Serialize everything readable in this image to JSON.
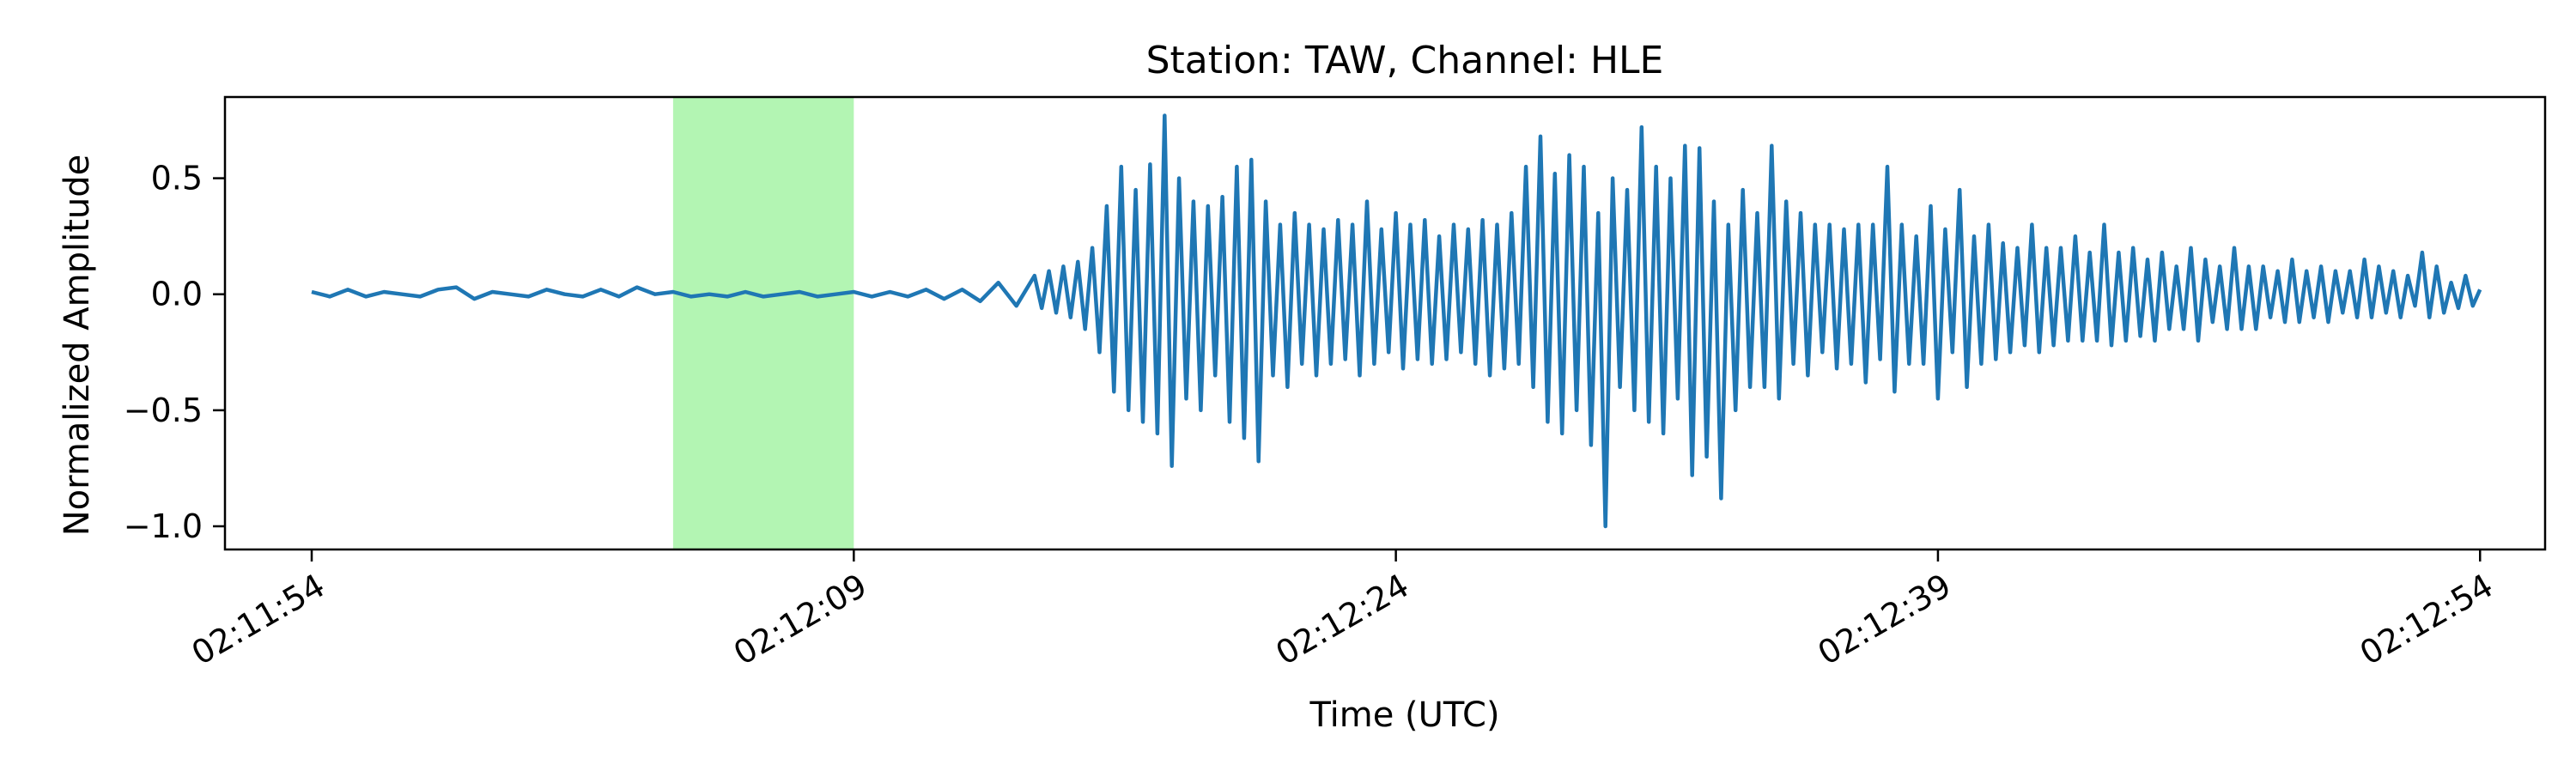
{
  "chart_data": {
    "type": "line",
    "title": "Station: TAW, Channel: HLE",
    "xlabel": "Time (UTC)",
    "ylabel": "Normalized Amplitude",
    "x_unit": "seconds",
    "xlim": [
      -2.4,
      61.8
    ],
    "ylim": [
      -1.1,
      0.85
    ],
    "x_ticks": [
      0,
      15,
      30,
      45,
      60
    ],
    "x_tick_labels": [
      "02:11:54",
      "02:12:09",
      "02:12:24",
      "02:12:39",
      "02:12:54"
    ],
    "y_ticks": [
      -1.0,
      -0.5,
      0.0,
      0.5
    ],
    "y_tick_labels": [
      "−1.0",
      "−0.5",
      "0.0",
      "0.5"
    ],
    "grid": false,
    "highlight": {
      "x_start": 10.0,
      "x_end": 15.0,
      "color": "#b3f5b3"
    },
    "series": [
      {
        "color": "#1f77b4",
        "x": [
          0,
          0.5,
          1,
          1.5,
          2,
          2.5,
          3,
          3.5,
          4,
          4.5,
          5,
          5.5,
          6,
          6.5,
          7,
          7.5,
          8,
          8.5,
          9,
          9.5,
          10,
          10.5,
          11,
          11.5,
          12,
          12.5,
          13,
          13.5,
          14,
          14.5,
          15,
          15.5,
          16,
          16.5,
          17,
          17.5,
          18,
          18.5,
          19,
          19.5,
          20,
          20.2,
          20.4,
          20.6,
          20.8,
          21,
          21.2,
          21.4,
          21.6,
          21.8,
          22,
          22.2,
          22.4,
          22.6,
          22.8,
          23,
          23.2,
          23.4,
          23.6,
          23.8,
          24,
          24.2,
          24.4,
          24.6,
          24.8,
          25,
          25.2,
          25.4,
          25.6,
          25.8,
          26,
          26.2,
          26.4,
          26.6,
          26.8,
          27,
          27.2,
          27.4,
          27.6,
          27.8,
          28,
          28.2,
          28.4,
          28.6,
          28.8,
          29,
          29.2,
          29.4,
          29.6,
          29.8,
          30,
          30.2,
          30.4,
          30.6,
          30.8,
          31,
          31.2,
          31.4,
          31.6,
          31.8,
          32,
          32.2,
          32.4,
          32.6,
          32.8,
          33,
          33.2,
          33.4,
          33.6,
          33.8,
          34,
          34.2,
          34.4,
          34.6,
          34.8,
          35,
          35.2,
          35.4,
          35.6,
          35.8,
          36,
          36.2,
          36.4,
          36.6,
          36.8,
          37,
          37.2,
          37.4,
          37.6,
          37.8,
          38,
          38.2,
          38.4,
          38.6,
          38.8,
          39,
          39.2,
          39.4,
          39.6,
          39.8,
          40,
          40.2,
          40.4,
          40.6,
          40.8,
          41,
          41.2,
          41.4,
          41.6,
          41.8,
          42,
          42.2,
          42.4,
          42.6,
          42.8,
          43,
          43.2,
          43.4,
          43.6,
          43.8,
          44,
          44.2,
          44.4,
          44.6,
          44.8,
          45,
          45.2,
          45.4,
          45.6,
          45.8,
          46,
          46.2,
          46.4,
          46.6,
          46.8,
          47,
          47.2,
          47.4,
          47.6,
          47.8,
          48,
          48.2,
          48.4,
          48.6,
          48.8,
          49,
          49.2,
          49.4,
          49.6,
          49.8,
          50,
          50.2,
          50.4,
          50.6,
          50.8,
          51,
          51.2,
          51.4,
          51.6,
          51.8,
          52,
          52.2,
          52.4,
          52.6,
          52.8,
          53,
          53.2,
          53.4,
          53.6,
          53.8,
          54,
          54.2,
          54.4,
          54.6,
          54.8,
          55,
          55.2,
          55.4,
          55.6,
          55.8,
          56,
          56.2,
          56.4,
          56.6,
          56.8,
          57,
          57.2,
          57.4,
          57.6,
          57.8,
          58,
          58.2,
          58.4,
          58.6,
          58.8,
          59,
          59.2,
          59.4,
          59.6,
          59.8,
          60
        ],
        "y": [
          0.01,
          -0.01,
          0.02,
          -0.01,
          0.01,
          0.0,
          -0.01,
          0.02,
          0.03,
          -0.02,
          0.01,
          0.0,
          -0.01,
          0.02,
          0.0,
          -0.01,
          0.02,
          -0.01,
          0.03,
          0.0,
          0.01,
          -0.01,
          0.0,
          -0.01,
          0.01,
          -0.01,
          0.0,
          0.01,
          -0.01,
          0.0,
          0.01,
          -0.01,
          0.01,
          -0.01,
          0.02,
          -0.02,
          0.02,
          -0.03,
          0.05,
          -0.05,
          0.08,
          -0.06,
          0.1,
          -0.08,
          0.12,
          -0.1,
          0.14,
          -0.15,
          0.2,
          -0.25,
          0.38,
          -0.42,
          0.55,
          -0.5,
          0.45,
          -0.55,
          0.56,
          -0.6,
          0.77,
          -0.74,
          0.5,
          -0.45,
          0.4,
          -0.5,
          0.38,
          -0.35,
          0.42,
          -0.55,
          0.55,
          -0.62,
          0.58,
          -0.72,
          0.4,
          -0.35,
          0.3,
          -0.4,
          0.35,
          -0.3,
          0.3,
          -0.35,
          0.28,
          -0.3,
          0.32,
          -0.28,
          0.3,
          -0.35,
          0.4,
          -0.3,
          0.28,
          -0.25,
          0.35,
          -0.32,
          0.3,
          -0.28,
          0.32,
          -0.3,
          0.25,
          -0.28,
          0.3,
          -0.25,
          0.28,
          -0.3,
          0.32,
          -0.35,
          0.3,
          -0.32,
          0.35,
          -0.3,
          0.55,
          -0.4,
          0.68,
          -0.55,
          0.52,
          -0.6,
          0.6,
          -0.5,
          0.55,
          -0.65,
          0.35,
          -1.0,
          0.5,
          -0.4,
          0.45,
          -0.5,
          0.72,
          -0.55,
          0.55,
          -0.6,
          0.5,
          -0.45,
          0.64,
          -0.78,
          0.63,
          -0.7,
          0.4,
          -0.88,
          0.3,
          -0.5,
          0.45,
          -0.4,
          0.35,
          -0.4,
          0.64,
          -0.45,
          0.4,
          -0.3,
          0.35,
          -0.35,
          0.3,
          -0.25,
          0.3,
          -0.32,
          0.28,
          -0.3,
          0.3,
          -0.38,
          0.3,
          -0.28,
          0.55,
          -0.42,
          0.3,
          -0.3,
          0.25,
          -0.3,
          0.38,
          -0.45,
          0.28,
          -0.25,
          0.45,
          -0.4,
          0.25,
          -0.3,
          0.3,
          -0.28,
          0.22,
          -0.25,
          0.2,
          -0.22,
          0.3,
          -0.25,
          0.2,
          -0.22,
          0.2,
          -0.2,
          0.25,
          -0.2,
          0.18,
          -0.2,
          0.3,
          -0.22,
          0.18,
          -0.2,
          0.2,
          -0.18,
          0.15,
          -0.2,
          0.18,
          -0.15,
          0.12,
          -0.15,
          0.2,
          -0.2,
          0.15,
          -0.12,
          0.12,
          -0.15,
          0.2,
          -0.15,
          0.12,
          -0.15,
          0.12,
          -0.1,
          0.1,
          -0.12,
          0.15,
          -0.12,
          0.1,
          -0.1,
          0.12,
          -0.12,
          0.1,
          -0.08,
          0.1,
          -0.1,
          0.15,
          -0.1,
          0.12,
          -0.08,
          0.1,
          -0.1,
          0.08,
          -0.05,
          0.18,
          -0.1,
          0.12,
          -0.08,
          0.05,
          -0.06,
          0.08,
          -0.05,
          0.02
        ]
      }
    ]
  }
}
